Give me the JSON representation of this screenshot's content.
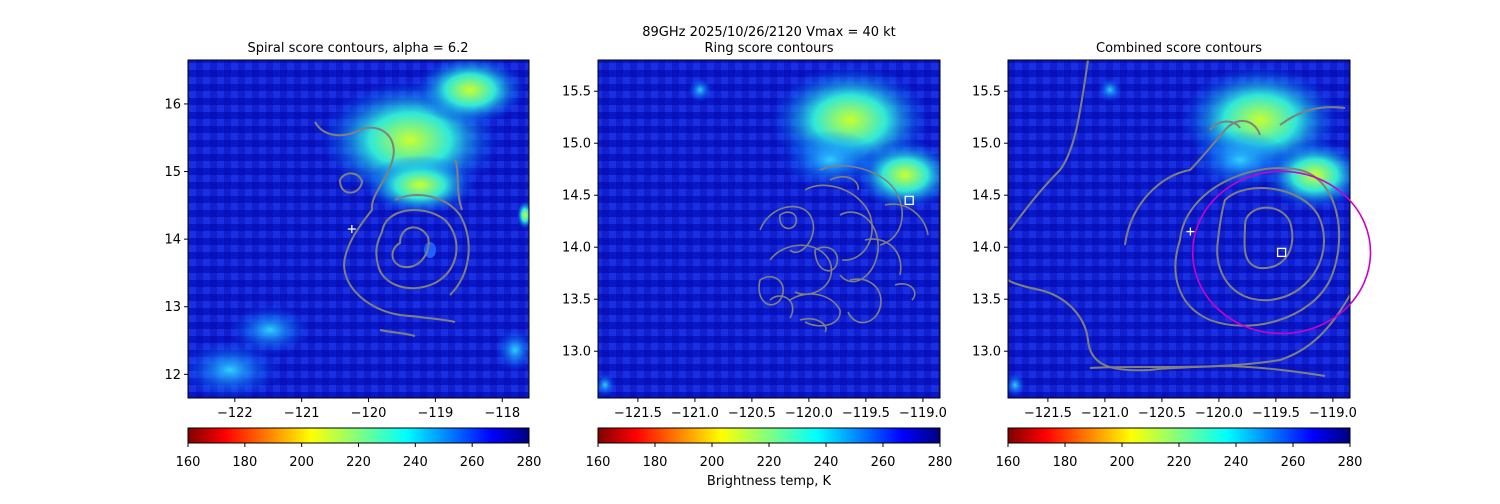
{
  "figure": {
    "suptitle_line1": "89GHz  2025/10/26/2120    Vmax = 40 kt",
    "colorbar_label": "Brightness temp, K"
  },
  "colorbar": {
    "ticks": [
      "160",
      "180",
      "200",
      "220",
      "240",
      "260",
      "280"
    ],
    "vmin": 160,
    "vmax": 280,
    "colors": [
      "#800000",
      "#ff0000",
      "#ff8000",
      "#ffff00",
      "#80ff80",
      "#00ffff",
      "#0080ff",
      "#0000ff",
      "#000080"
    ]
  },
  "colors": {
    "contour": "#808080",
    "fit_circle": "#cc00cc",
    "marker": "#ffffff"
  },
  "chart_data": [
    {
      "type": "heatmap",
      "title": "Spiral score contours, alpha =  6.2",
      "xticks": [
        "−122",
        "−121",
        "−120",
        "−119",
        "−118"
      ],
      "xtick_values": [
        -122,
        -121,
        -120,
        -119,
        -118
      ],
      "yticks": [
        "12",
        "13",
        "14",
        "15",
        "16"
      ],
      "ytick_values": [
        12,
        13,
        14,
        15,
        16
      ],
      "xlim": [
        -122.7,
        -117.6
      ],
      "ylim": [
        11.65,
        16.65
      ],
      "markers": [
        {
          "kind": "plus",
          "lon": -120.25,
          "lat": 14.15
        }
      ],
      "contour_center": {
        "lon": -119.4,
        "lat": 14.0
      }
    },
    {
      "type": "heatmap",
      "title": "Ring score contours",
      "xticks": [
        "−121.5",
        "−121.0",
        "−120.5",
        "−120.0",
        "−119.5",
        "−119.0"
      ],
      "xtick_values": [
        -121.5,
        -121.0,
        -120.5,
        -120.0,
        -119.5,
        -119.0
      ],
      "yticks": [
        "13.0",
        "13.5",
        "14.0",
        "14.5",
        "15.0",
        "15.5"
      ],
      "ytick_values": [
        13.0,
        13.5,
        14.0,
        14.5,
        15.0,
        15.5
      ],
      "xlim": [
        -121.85,
        -118.85
      ],
      "ylim": [
        12.55,
        15.8
      ],
      "markers": [
        {
          "kind": "square",
          "lon": -119.12,
          "lat": 14.45
        }
      ]
    },
    {
      "type": "heatmap",
      "title": "Combined score contours",
      "xticks": [
        "−121.5",
        "−121.0",
        "−120.5",
        "−120.0",
        "−119.5",
        "−119.0"
      ],
      "xtick_values": [
        -121.5,
        -121.0,
        -120.5,
        -120.0,
        -119.5,
        -119.0
      ],
      "yticks": [
        "13.0",
        "13.5",
        "14.0",
        "14.5",
        "15.0",
        "15.5"
      ],
      "ytick_values": [
        13.0,
        13.5,
        14.0,
        14.5,
        15.0,
        15.5
      ],
      "xlim": [
        -121.85,
        -118.85
      ],
      "ylim": [
        12.55,
        15.8
      ],
      "markers": [
        {
          "kind": "plus",
          "lon": -120.25,
          "lat": 14.15
        },
        {
          "kind": "square",
          "lon": -119.45,
          "lat": 13.95
        }
      ],
      "fit_circle": {
        "lon": -119.45,
        "lat": 13.95,
        "radius_deg": 0.78
      }
    }
  ]
}
